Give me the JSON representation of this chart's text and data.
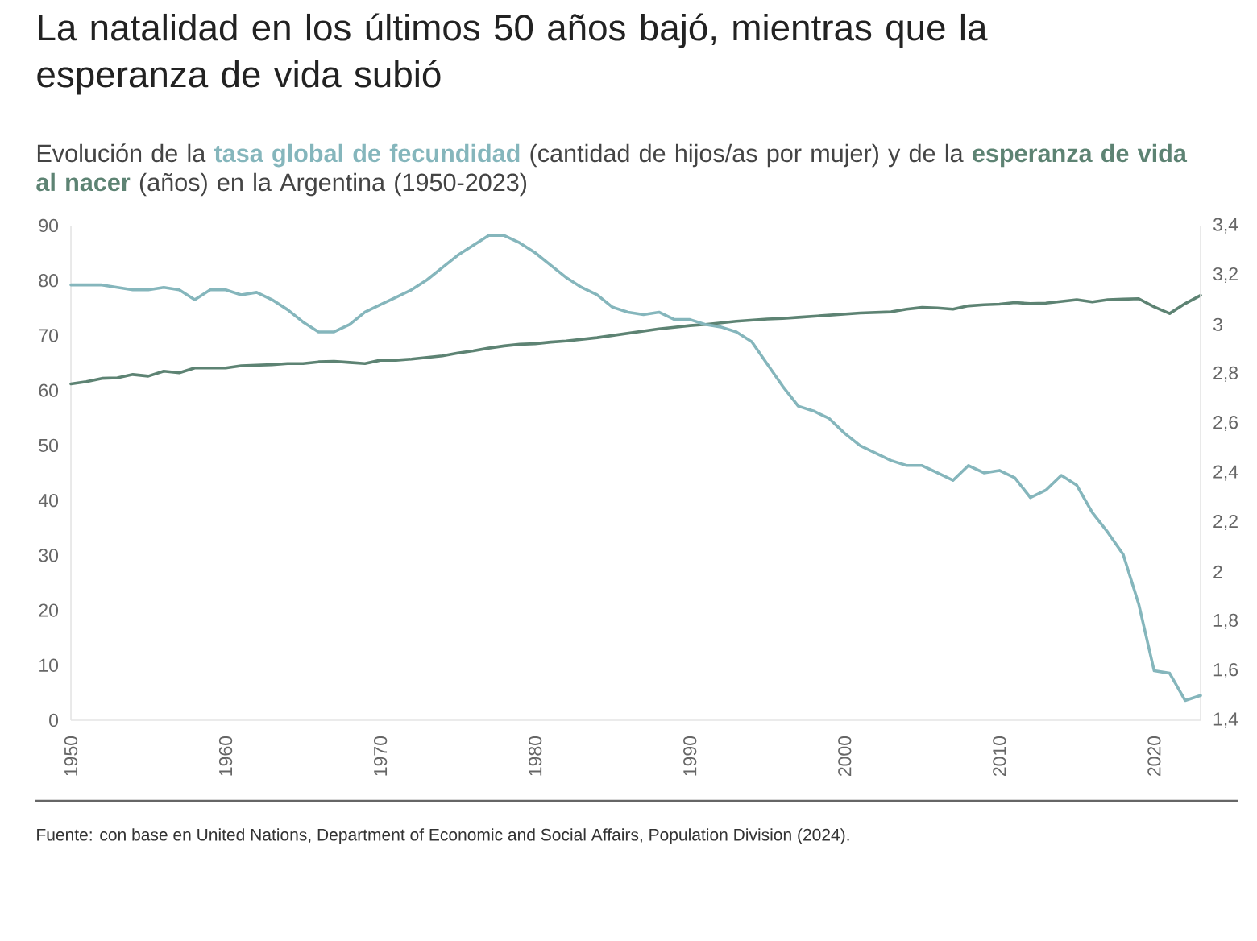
{
  "chart_data": {
    "type": "line",
    "title": "La natalidad en los últimos 50 años bajó, mientras que la esperanza de vida subió",
    "subtitle": "Evolución de la",
    "annotations": [
      "(cantidad de hijos/as por mujer) y de la",
      "(años) en la Argentina (1950-2023)",
      "Fuente: con base en United Nations, Department of Economic and Social Affairs, Population Division (2024)."
    ],
    "x": [
      1950,
      1951,
      1952,
      1953,
      1954,
      1955,
      1956,
      1957,
      1958,
      1959,
      1960,
      1961,
      1962,
      1963,
      1964,
      1965,
      1966,
      1967,
      1968,
      1969,
      1970,
      1971,
      1972,
      1973,
      1974,
      1975,
      1976,
      1977,
      1978,
      1979,
      1980,
      1981,
      1982,
      1983,
      1984,
      1985,
      1986,
      1987,
      1988,
      1989,
      1990,
      1991,
      1992,
      1993,
      1994,
      1995,
      1996,
      1997,
      1998,
      1999,
      2000,
      2001,
      2002,
      2003,
      2004,
      2005,
      2006,
      2007,
      2008,
      2009,
      2010,
      2011,
      2012,
      2013,
      2014,
      2015,
      2016,
      2017,
      2018,
      2019,
      2020,
      2021,
      2022,
      2023
    ],
    "series": [
      {
        "name": "tasa global de fecundidad",
        "color": "#85b6bc",
        "axis": "y2",
        "values": [
          3.16,
          3.16,
          3.16,
          3.15,
          3.14,
          3.14,
          3.15,
          3.14,
          3.1,
          3.14,
          3.14,
          3.12,
          3.13,
          3.1,
          3.06,
          3.01,
          2.97,
          2.97,
          3.0,
          3.05,
          3.08,
          3.11,
          3.14,
          3.18,
          3.23,
          3.28,
          3.32,
          3.36,
          3.36,
          3.33,
          3.29,
          3.24,
          3.19,
          3.15,
          3.12,
          3.07,
          3.05,
          3.04,
          3.05,
          3.02,
          3.02,
          3.0,
          2.99,
          2.97,
          2.93,
          2.84,
          2.75,
          2.67,
          2.65,
          2.62,
          2.56,
          2.51,
          2.48,
          2.45,
          2.43,
          2.43,
          2.4,
          2.37,
          2.43,
          2.4,
          2.41,
          2.38,
          2.3,
          2.33,
          2.39,
          2.35,
          2.24,
          2.16,
          2.07,
          1.87,
          1.6,
          1.59,
          1.48,
          1.5
        ]
      },
      {
        "name": "esperanza de vida al nacer",
        "color": "#5d8373",
        "values": [
          61.2,
          61.6,
          62.2,
          62.3,
          62.9,
          62.6,
          63.5,
          63.2,
          64.1,
          64.1,
          64.1,
          64.5,
          64.6,
          64.7,
          64.9,
          64.9,
          65.2,
          65.3,
          65.1,
          64.9,
          65.5,
          65.5,
          65.7,
          66.0,
          66.3,
          66.8,
          67.2,
          67.7,
          68.1,
          68.4,
          68.5,
          68.8,
          69.0,
          69.3,
          69.6,
          70.0,
          70.4,
          70.8,
          71.2,
          71.5,
          71.8,
          72.0,
          72.3,
          72.6,
          72.8,
          73.0,
          73.1,
          73.3,
          73.5,
          73.7,
          73.9,
          74.1,
          74.2,
          74.3,
          74.8,
          75.1,
          75.0,
          74.8,
          75.4,
          75.6,
          75.7,
          76.0,
          75.8,
          75.9,
          76.2,
          76.5,
          76.1,
          76.5,
          76.6,
          76.7,
          75.2,
          74.0,
          75.8,
          77.3
        ]
      }
    ],
    "xlim": [
      1950,
      2023
    ],
    "xticks": [
      1950,
      1960,
      1970,
      1980,
      1990,
      2000,
      2010,
      2020
    ],
    "ylim": [
      0,
      90
    ],
    "yticks": [
      0,
      10,
      20,
      30,
      40,
      50,
      60,
      70,
      80,
      90
    ],
    "y2lim": [
      1.4,
      3.4
    ],
    "y2ticks": [
      {
        "value": 1.4,
        "label": "1,4"
      },
      {
        "value": 1.6,
        "label": "1,6"
      },
      {
        "value": 1.8,
        "label": "1,8"
      },
      2,
      {
        "value": 2.2,
        "label": "2,2"
      },
      {
        "value": 2.4,
        "label": "2,4"
      },
      {
        "value": 2.6,
        "label": "2,6"
      },
      {
        "value": 2.8,
        "label": "2,8"
      },
      3,
      {
        "value": 3.2,
        "label": "3,2"
      },
      {
        "value": 3.4,
        "label": "3,4"
      }
    ],
    "marker": "none",
    "line_style": "solid"
  }
}
